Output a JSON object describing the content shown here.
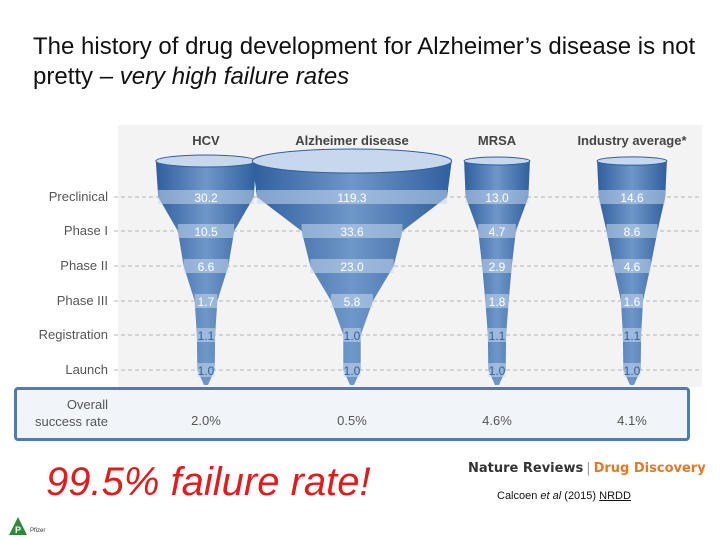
{
  "slide": {
    "title_main": "The history of drug development for Alzheimer’s disease is not pretty – ",
    "title_emphasis": "very high failure rates",
    "failure_callout": "99.5% failure rate!",
    "publisher_name": "Nature Reviews",
    "publisher_sep": "|",
    "publisher_journal": "Drug Discovery",
    "citation_prefix": "Calcoen ",
    "citation_etal": "et al",
    "citation_year": " (2015) ",
    "citation_link": "NRDD",
    "logo_letter": "P",
    "logo_text": "Pfizer"
  },
  "chart_data": {
    "type": "funnel",
    "title": "",
    "stages": [
      "Preclinical",
      "Phase I",
      "Phase II",
      "Phase III",
      "Registration",
      "Launch"
    ],
    "overall_label": [
      "Overall",
      "success rate"
    ],
    "series": [
      {
        "name": "HCV",
        "values": [
          30.2,
          10.5,
          6.6,
          1.7,
          1.1,
          1.0
        ],
        "overall": "2.0%"
      },
      {
        "name": "Alzheimer disease",
        "values": [
          119.3,
          33.6,
          23.0,
          5.8,
          1.0,
          1.0
        ],
        "overall": "0.5%"
      },
      {
        "name": "MRSA",
        "values": [
          13.0,
          4.7,
          2.9,
          1.8,
          1.1,
          1.0
        ],
        "overall": "4.6%"
      },
      {
        "name": "Industry average*",
        "values": [
          14.6,
          8.6,
          4.6,
          1.6,
          1.1,
          1.0
        ],
        "overall": "4.1%"
      }
    ],
    "colors": {
      "funnel_dark": "#2f5f9e",
      "funnel_light": "#c7d8ec",
      "funnel_mid": "#6f97c8",
      "label_text": "#555555",
      "value_text": "#ffffff",
      "overall_text": "#555555",
      "header_text": "#444444",
      "dash": "#b5b5b5"
    }
  }
}
